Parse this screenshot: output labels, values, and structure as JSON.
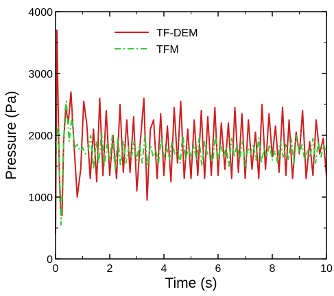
{
  "chart_data": {
    "type": "line",
    "title": "",
    "xlabel": "Time (s)",
    "ylabel": "Pressure (Pa)",
    "xlim": [
      0,
      10
    ],
    "ylim": [
      0,
      4000
    ],
    "xticks": [
      0,
      2,
      4,
      6,
      8,
      10
    ],
    "yticks": [
      0,
      1000,
      2000,
      3000,
      4000
    ],
    "xtick_labels": [
      "0",
      "2",
      "4",
      "6",
      "8",
      "10"
    ],
    "ytick_labels": [
      "0",
      "1000",
      "2000",
      "3000",
      "4000"
    ],
    "grid": false,
    "legend_position": "top-right",
    "series": [
      {
        "name": "TF-DEM",
        "color": "#cc1f1f",
        "style": "solid",
        "x": [
          0.0,
          0.05,
          0.09,
          0.14,
          0.19,
          0.24,
          0.3,
          0.38,
          0.47,
          0.57,
          0.68,
          0.8,
          0.93,
          1.04,
          1.15,
          1.28,
          1.4,
          1.52,
          1.63,
          1.75,
          1.87,
          2.0,
          2.12,
          2.25,
          2.38,
          2.5,
          2.63,
          2.75,
          2.88,
          3.0,
          3.13,
          3.26,
          3.38,
          3.5,
          3.62,
          3.75,
          3.88,
          4.0,
          4.13,
          4.26,
          4.38,
          4.5,
          4.62,
          4.75,
          4.88,
          5.0,
          5.12,
          5.25,
          5.38,
          5.5,
          5.62,
          5.75,
          5.88,
          6.0,
          6.12,
          6.25,
          6.38,
          6.5,
          6.62,
          6.75,
          6.88,
          7.0,
          7.12,
          7.25,
          7.38,
          7.5,
          7.62,
          7.75,
          7.88,
          8.0,
          8.12,
          8.25,
          8.38,
          8.5,
          8.62,
          8.75,
          8.88,
          9.0,
          9.12,
          9.25,
          9.38,
          9.5,
          9.62,
          9.75,
          9.88,
          10.0
        ],
        "values": [
          400,
          3700,
          2600,
          1400,
          800,
          700,
          1900,
          2450,
          2200,
          2700,
          1850,
          1000,
          1450,
          2550,
          2200,
          1300,
          2100,
          1250,
          2600,
          1350,
          2400,
          1350,
          2000,
          1300,
          2500,
          1400,
          2250,
          1400,
          2300,
          1100,
          1900,
          2600,
          950,
          2100,
          2250,
          1300,
          2350,
          1350,
          2150,
          1250,
          2450,
          1550,
          2550,
          1300,
          2100,
          1300,
          2250,
          1350,
          2400,
          1300,
          2300,
          1350,
          2450,
          1350,
          2200,
          1450,
          2200,
          1300,
          2450,
          1400,
          2350,
          1300,
          2250,
          1450,
          2050,
          1300,
          2500,
          1450,
          2350,
          1650,
          2150,
          1400,
          2450,
          1350,
          2250,
          1300,
          2050,
          1700,
          2400,
          1300,
          1900,
          1350,
          2250,
          1700,
          1950,
          1350
        ]
      },
      {
        "name": "TFM",
        "color": "#33cc33",
        "style": "dash-dot",
        "x": [
          0.0,
          0.05,
          0.1,
          0.15,
          0.2,
          0.25,
          0.3,
          0.35,
          0.4,
          0.5,
          0.6,
          0.7,
          0.8,
          0.9,
          1.0,
          1.1,
          1.2,
          1.3,
          1.4,
          1.5,
          1.6,
          1.7,
          1.8,
          1.9,
          2.0,
          2.1,
          2.2,
          2.3,
          2.4,
          2.5,
          2.6,
          2.7,
          2.8,
          2.9,
          3.0,
          3.1,
          3.2,
          3.3,
          3.4,
          3.5,
          3.6,
          3.7,
          3.8,
          3.9,
          4.0,
          4.1,
          4.2,
          4.3,
          4.4,
          4.5,
          4.6,
          4.7,
          4.8,
          4.9,
          5.0,
          5.1,
          5.2,
          5.3,
          5.4,
          5.5,
          5.6,
          5.7,
          5.8,
          5.9,
          6.0,
          6.1,
          6.2,
          6.3,
          6.4,
          6.5,
          6.6,
          6.7,
          6.8,
          6.9,
          7.0,
          7.1,
          7.2,
          7.3,
          7.4,
          7.5,
          7.6,
          7.7,
          7.8,
          7.9,
          8.0,
          8.1,
          8.2,
          8.3,
          8.4,
          8.5,
          8.6,
          8.7,
          8.8,
          8.9,
          9.0,
          9.1,
          9.2,
          9.3,
          9.4,
          9.5,
          9.6,
          9.7,
          9.8,
          9.9,
          10.0
        ],
        "values": [
          1600,
          2000,
          2150,
          1100,
          550,
          1200,
          1900,
          2400,
          2550,
          1900,
          2300,
          1800,
          1850,
          1750,
          1800,
          1700,
          1750,
          2000,
          1450,
          1900,
          1550,
          2050,
          1500,
          1850,
          1600,
          2000,
          1450,
          1950,
          1500,
          1900,
          1550,
          1800,
          1650,
          1900,
          1600,
          1850,
          1550,
          2000,
          1500,
          1850,
          1650,
          1750,
          1550,
          1950,
          1650,
          1800,
          1600,
          1900,
          1700,
          1750,
          1550,
          2000,
          1600,
          1800,
          1650,
          1850,
          1600,
          1950,
          1500,
          1900,
          1700,
          1750,
          1550,
          2000,
          1600,
          1850,
          1650,
          1800,
          1500,
          1950,
          1650,
          1850,
          1600,
          1900,
          1500,
          1800,
          1700,
          1850,
          1600,
          1950,
          1550,
          1800,
          1650,
          1850,
          1600,
          1750,
          1550,
          1900,
          1650,
          1850,
          1600,
          1950,
          1550,
          2000,
          1700,
          1850,
          1600,
          1750,
          1650,
          1950,
          1550,
          1900,
          1650,
          1850,
          1700
        ]
      }
    ]
  }
}
